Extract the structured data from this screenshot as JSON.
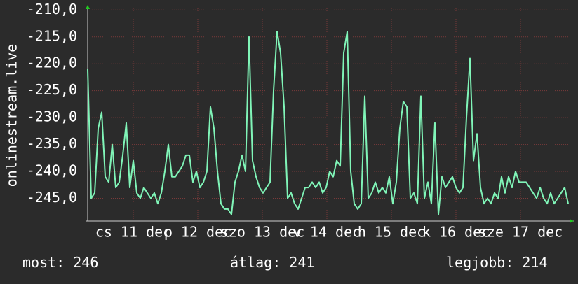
{
  "chart_data": {
    "type": "line",
    "y_label": "onlinestream.live",
    "color": "#80f5b8",
    "grid": true,
    "xlim": [
      0,
      138
    ],
    "xticks": [
      {
        "value": 13,
        "label": "cs 11 dec"
      },
      {
        "value": 31.4,
        "label": "p 12 dec"
      },
      {
        "value": 49.8,
        "label": "szo 13 dec"
      },
      {
        "value": 68.2,
        "label": "v 14 dec"
      },
      {
        "value": 86.6,
        "label": "h 15 dec"
      },
      {
        "value": 105,
        "label": "k 16 dec"
      },
      {
        "value": 123.4,
        "label": "sze 17 dec"
      }
    ],
    "ylim": [
      -249.1,
      -209.7
    ],
    "yticks": [
      {
        "value": -210,
        "label": "-210,0"
      },
      {
        "value": -215,
        "label": "-215,0"
      },
      {
        "value": -220,
        "label": "-220,0"
      },
      {
        "value": -225,
        "label": "-225,0"
      },
      {
        "value": -230,
        "label": "-230,0"
      },
      {
        "value": -235,
        "label": "-235,0"
      },
      {
        "value": -240,
        "label": "-240,0"
      },
      {
        "value": -245,
        "label": "-245,0"
      }
    ],
    "values": [
      -221,
      -245,
      -244,
      -232,
      -229,
      -241,
      -242,
      -235,
      -243,
      -242,
      -237,
      -231,
      -243,
      -238,
      -244,
      -245,
      -243,
      -244,
      -245,
      -244,
      -246,
      -244,
      -240,
      -235,
      -241,
      -241,
      -240,
      -239,
      -237,
      -237,
      -242,
      -240,
      -243,
      -242,
      -240,
      -228,
      -232,
      -240,
      -246,
      -247,
      -247,
      -248,
      -242,
      -240,
      -237,
      -240,
      -215,
      -238,
      -241,
      -243,
      -244,
      -243,
      -242,
      -225,
      -214,
      -218,
      -228,
      -245,
      -244,
      -246,
      -247,
      -245,
      -243,
      -243,
      -242,
      -243,
      -242,
      -244,
      -243,
      -240,
      -241,
      -238,
      -239,
      -218,
      -214,
      -240,
      -246,
      -247,
      -246,
      -226,
      -245,
      -244,
      -242,
      -244,
      -243,
      -244,
      -241,
      -246,
      -242,
      -232,
      -227,
      -228,
      -245,
      -244,
      -246,
      -226,
      -245,
      -242,
      -246,
      -231,
      -248,
      -241,
      -243,
      -242,
      -241,
      -243,
      -244,
      -243,
      -230,
      -219,
      -238,
      -233,
      -243,
      -246,
      -245,
      -246,
      -244,
      -245,
      -241,
      -244,
      -241,
      -243,
      -240,
      -242,
      -242,
      -242,
      -243,
      -244,
      -245,
      -243,
      -245,
      -246,
      -244,
      -246,
      -245,
      -244,
      -243,
      -246
    ],
    "stats": [
      "most: 246",
      "átlag: 241",
      "legjobb: 214"
    ]
  }
}
